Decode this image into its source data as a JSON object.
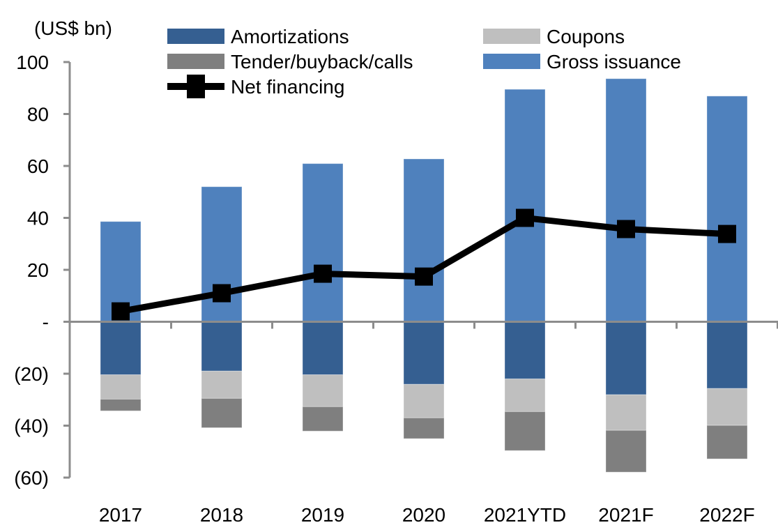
{
  "chart_data": {
    "type": "bar",
    "subtype": "stacked-bar-with-line",
    "title": "",
    "ylabel": "(US$ bn)",
    "xlabel": "",
    "ylim": [
      -60,
      100
    ],
    "yticks": [
      100,
      80,
      60,
      40,
      20,
      0,
      -20,
      -40,
      -60
    ],
    "ytick_labels": [
      "100",
      "80",
      "60",
      "40",
      "20",
      "-",
      "(20)",
      "(40)",
      "(60)"
    ],
    "grid": false,
    "legend_position": "top",
    "categories": [
      "2017",
      "2018",
      "2019",
      "2020",
      "2021YTD",
      "2021F",
      "2022F"
    ],
    "series": [
      {
        "name": "Gross issuance",
        "kind": "bar",
        "color": "#4F81BD",
        "values": [
          38.6,
          52.0,
          60.9,
          62.7,
          89.5,
          93.6,
          86.9
        ]
      },
      {
        "name": "Amortizations",
        "kind": "bar",
        "color": "#355F91",
        "values": [
          -20.4,
          -19.0,
          -20.4,
          -24.1,
          -22.0,
          -28.1,
          -25.7
        ]
      },
      {
        "name": "Coupons",
        "kind": "bar",
        "color": "#BFBFBF",
        "values": [
          -9.4,
          -10.5,
          -12.3,
          -12.9,
          -12.6,
          -13.7,
          -14.2
        ]
      },
      {
        "name": "Tender/buyback/calls",
        "kind": "bar",
        "color": "#7F7F7F",
        "values": [
          -4.5,
          -11.3,
          -9.4,
          -8.0,
          -15.0,
          -16.1,
          -12.9
        ]
      },
      {
        "name": "Net financing",
        "kind": "line",
        "color": "#000000",
        "values": [
          4.0,
          11.0,
          18.5,
          17.4,
          40.0,
          35.7,
          33.8
        ]
      }
    ],
    "legend": [
      {
        "name": "Amortizations",
        "kind": "bar",
        "color": "#355F91"
      },
      {
        "name": "Coupons",
        "kind": "bar",
        "color": "#BFBFBF"
      },
      {
        "name": "Tender/buyback/calls",
        "kind": "bar",
        "color": "#7F7F7F"
      },
      {
        "name": "Gross issuance",
        "kind": "bar",
        "color": "#4F81BD"
      },
      {
        "name": "Net financing",
        "kind": "line",
        "color": "#000000"
      }
    ],
    "axis_color": "#8C8C8C"
  }
}
